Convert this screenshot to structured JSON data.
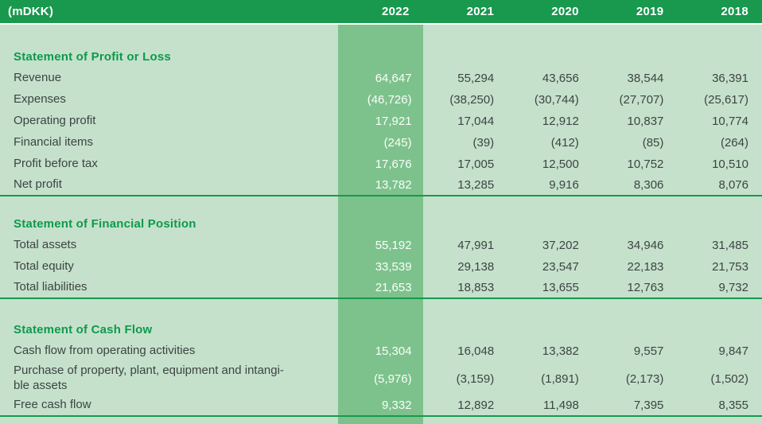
{
  "table": {
    "unit_label": "(mDKK)",
    "years": [
      "2022",
      "2021",
      "2020",
      "2019",
      "2018"
    ],
    "highlighted_year": "2022",
    "colors": {
      "header_bg": "#18994e",
      "body_bg": "#c5e1cc",
      "highlight_band": "#7dc28c",
      "section_heading_text": "#0d9a4b",
      "body_text": "#3d4442",
      "highlight_text": "#fbfdfb",
      "rule": "#18994e"
    },
    "sections": [
      {
        "heading": "Statement of Profit or Loss",
        "rows": [
          {
            "label": "Revenue",
            "values": [
              "64,647",
              "55,294",
              "43,656",
              "38,544",
              "36,391"
            ]
          },
          {
            "label": "Expenses",
            "values": [
              "(46,726)",
              "(38,250)",
              "(30,744)",
              "(27,707)",
              "(25,617)"
            ]
          },
          {
            "label": "Operating profit",
            "values": [
              "17,921",
              "17,044",
              "12,912",
              "10,837",
              "10,774"
            ]
          },
          {
            "label": "Financial items",
            "values": [
              "(245)",
              "(39)",
              "(412)",
              "(85)",
              "(264)"
            ]
          },
          {
            "label": "Profit before tax",
            "values": [
              "17,676",
              "17,005",
              "12,500",
              "10,752",
              "10,510"
            ]
          },
          {
            "label": "Net profit",
            "values": [
              "13,782",
              "13,285",
              "9,916",
              "8,306",
              "8,076"
            ]
          }
        ]
      },
      {
        "heading": "Statement of Financial Position",
        "rows": [
          {
            "label": "Total assets",
            "values": [
              "55,192",
              "47,991",
              "37,202",
              "34,946",
              "31,485"
            ]
          },
          {
            "label": "Total equity",
            "values": [
              "33,539",
              "29,138",
              "23,547",
              "22,183",
              "21,753"
            ]
          },
          {
            "label": "Total liabilities",
            "values": [
              "21,653",
              "18,853",
              "13,655",
              "12,763",
              "9,732"
            ]
          }
        ]
      },
      {
        "heading": "Statement of Cash Flow",
        "rows": [
          {
            "label": "Cash flow from operating activities",
            "values": [
              "15,304",
              "16,048",
              "13,382",
              "9,557",
              "9,847"
            ]
          },
          {
            "label": "Purchase of property, plant, equipment and intangi-\nble assets",
            "values": [
              "(5,976)",
              "(3,159)",
              "(1,891)",
              "(2,173)",
              "(1,502)"
            ]
          },
          {
            "label": "Free cash flow",
            "values": [
              "9,332",
              "12,892",
              "11,498",
              "7,395",
              "8,355"
            ]
          }
        ]
      }
    ]
  }
}
